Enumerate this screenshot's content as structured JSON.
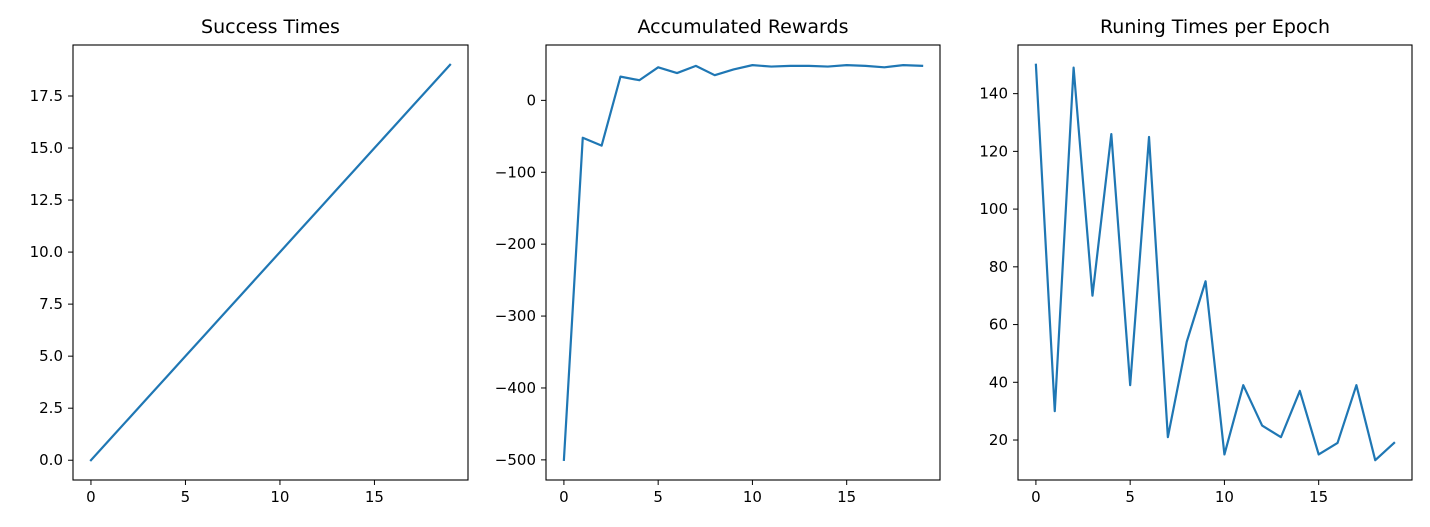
{
  "chart_data": [
    {
      "type": "line",
      "title": "Success Times",
      "xlabel": "",
      "ylabel": "",
      "xlim": [
        -0.95,
        19.95
      ],
      "ylim": [
        -0.95,
        19.95
      ],
      "xticks": [
        0,
        5,
        10,
        15
      ],
      "xtick_labels": [
        "0",
        "5",
        "10",
        "15"
      ],
      "yticks": [
        0,
        2.5,
        5,
        7.5,
        10,
        12.5,
        15,
        17.5
      ],
      "ytick_labels": [
        "0.0",
        "2.5",
        "5.0",
        "7.5",
        "10.0",
        "12.5",
        "15.0",
        "17.5"
      ],
      "grid": false,
      "color": "#1f77b4",
      "series": [
        {
          "x": [
            0,
            1,
            2,
            3,
            4,
            5,
            6,
            7,
            8,
            9,
            10,
            11,
            12,
            13,
            14,
            15,
            16,
            17,
            18,
            19
          ],
          "values": [
            0,
            1,
            2,
            3,
            4,
            5,
            6,
            7,
            8,
            9,
            10,
            11,
            12,
            13,
            14,
            15,
            16,
            17,
            18,
            19
          ]
        }
      ]
    },
    {
      "type": "line",
      "title": "Accumulated Rewards",
      "xlabel": "",
      "ylabel": "",
      "xlim": [
        -0.95,
        19.95
      ],
      "ylim": [
        -528,
        77
      ],
      "xticks": [
        0,
        5,
        10,
        15
      ],
      "xtick_labels": [
        "0",
        "5",
        "10",
        "15"
      ],
      "yticks": [
        -500,
        -400,
        -300,
        -200,
        -100,
        0
      ],
      "ytick_labels": [
        "−500",
        "−400",
        "−300",
        "−200",
        "−100",
        "0"
      ],
      "grid": false,
      "color": "#1f77b4",
      "series": [
        {
          "x": [
            0,
            1,
            2,
            3,
            4,
            5,
            6,
            7,
            8,
            9,
            10,
            11,
            12,
            13,
            14,
            15,
            16,
            17,
            18,
            19
          ],
          "values": [
            -500,
            -52,
            -63,
            33,
            28,
            46,
            38,
            48,
            35,
            43,
            49,
            47,
            48,
            48,
            47,
            49,
            48,
            46,
            49,
            48
          ]
        }
      ]
    },
    {
      "type": "line",
      "title": "Runing Times per Epoch",
      "xlabel": "",
      "ylabel": "",
      "xlim": [
        -0.95,
        19.95
      ],
      "ylim": [
        6.15,
        156.85
      ],
      "xticks": [
        0,
        5,
        10,
        15
      ],
      "xtick_labels": [
        "0",
        "5",
        "10",
        "15"
      ],
      "yticks": [
        20,
        40,
        60,
        80,
        100,
        120,
        140
      ],
      "ytick_labels": [
        "20",
        "40",
        "60",
        "80",
        "100",
        "120",
        "140"
      ],
      "grid": false,
      "color": "#1f77b4",
      "series": [
        {
          "x": [
            0,
            1,
            2,
            3,
            4,
            5,
            6,
            7,
            8,
            9,
            10,
            11,
            12,
            13,
            14,
            15,
            16,
            17,
            18,
            19
          ],
          "values": [
            150,
            30,
            149,
            70,
            126,
            39,
            125,
            21,
            54,
            75,
            15,
            39,
            25,
            21,
            37,
            15,
            19,
            39,
            13,
            19
          ]
        }
      ]
    }
  ]
}
